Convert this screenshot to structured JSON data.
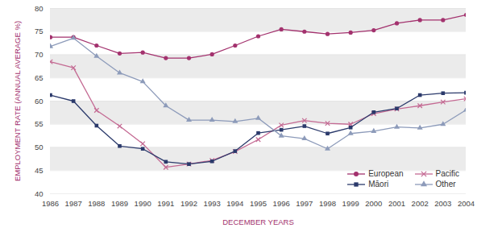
{
  "chart_data": {
    "type": "line",
    "x_label": "DECEMBER YEARS",
    "y_label": "EMPLOYMENT RATE (ANNUAL AVERAGE %)",
    "x": [
      1986,
      1987,
      1988,
      1989,
      1990,
      1991,
      1992,
      1993,
      1994,
      1995,
      1996,
      1997,
      1998,
      1999,
      2000,
      2001,
      2002,
      2003,
      2004
    ],
    "series": [
      {
        "name": "European",
        "color": "#a3326e",
        "marker": "circle",
        "values": [
          73.8,
          73.8,
          72.0,
          70.3,
          70.5,
          69.3,
          69.3,
          70.1,
          72.0,
          74.0,
          75.5,
          75.0,
          74.5,
          74.8,
          75.3,
          76.8,
          77.5,
          77.5,
          78.6
        ]
      },
      {
        "name": "Pacific",
        "color": "#c46a93",
        "marker": "cross",
        "values": [
          68.5,
          67.2,
          58.0,
          54.6,
          50.8,
          45.7,
          46.4,
          47.2,
          49.1,
          51.7,
          54.8,
          55.8,
          55.2,
          55.0,
          57.3,
          58.3,
          59.0,
          59.8,
          60.5
        ]
      },
      {
        "name": "Māori",
        "color": "#2b3a6b",
        "marker": "square",
        "values": [
          61.3,
          60.0,
          54.7,
          50.3,
          49.7,
          46.9,
          46.4,
          47.0,
          49.2,
          53.1,
          53.8,
          54.6,
          53.0,
          54.3,
          57.6,
          58.4,
          61.3,
          61.7,
          61.8
        ]
      },
      {
        "name": "Other",
        "color": "#8d9bba",
        "marker": "triangle",
        "values": [
          71.8,
          73.6,
          69.7,
          66.1,
          64.2,
          59.0,
          55.9,
          55.9,
          55.6,
          56.3,
          52.5,
          51.9,
          49.7,
          53.0,
          53.5,
          54.4,
          54.2,
          55.0,
          58.1
        ]
      }
    ],
    "xlim": [
      1986,
      2004
    ],
    "xticks": [
      1986,
      1987,
      1988,
      1989,
      1990,
      1991,
      1992,
      1993,
      1994,
      1995,
      1996,
      1997,
      1998,
      1999,
      2000,
      2001,
      2002,
      2003,
      2004
    ],
    "ylim": [
      40,
      80
    ],
    "yticks": [
      40,
      45,
      50,
      55,
      60,
      65,
      70,
      75,
      80
    ],
    "grid": true,
    "legend": "bottom-right"
  }
}
